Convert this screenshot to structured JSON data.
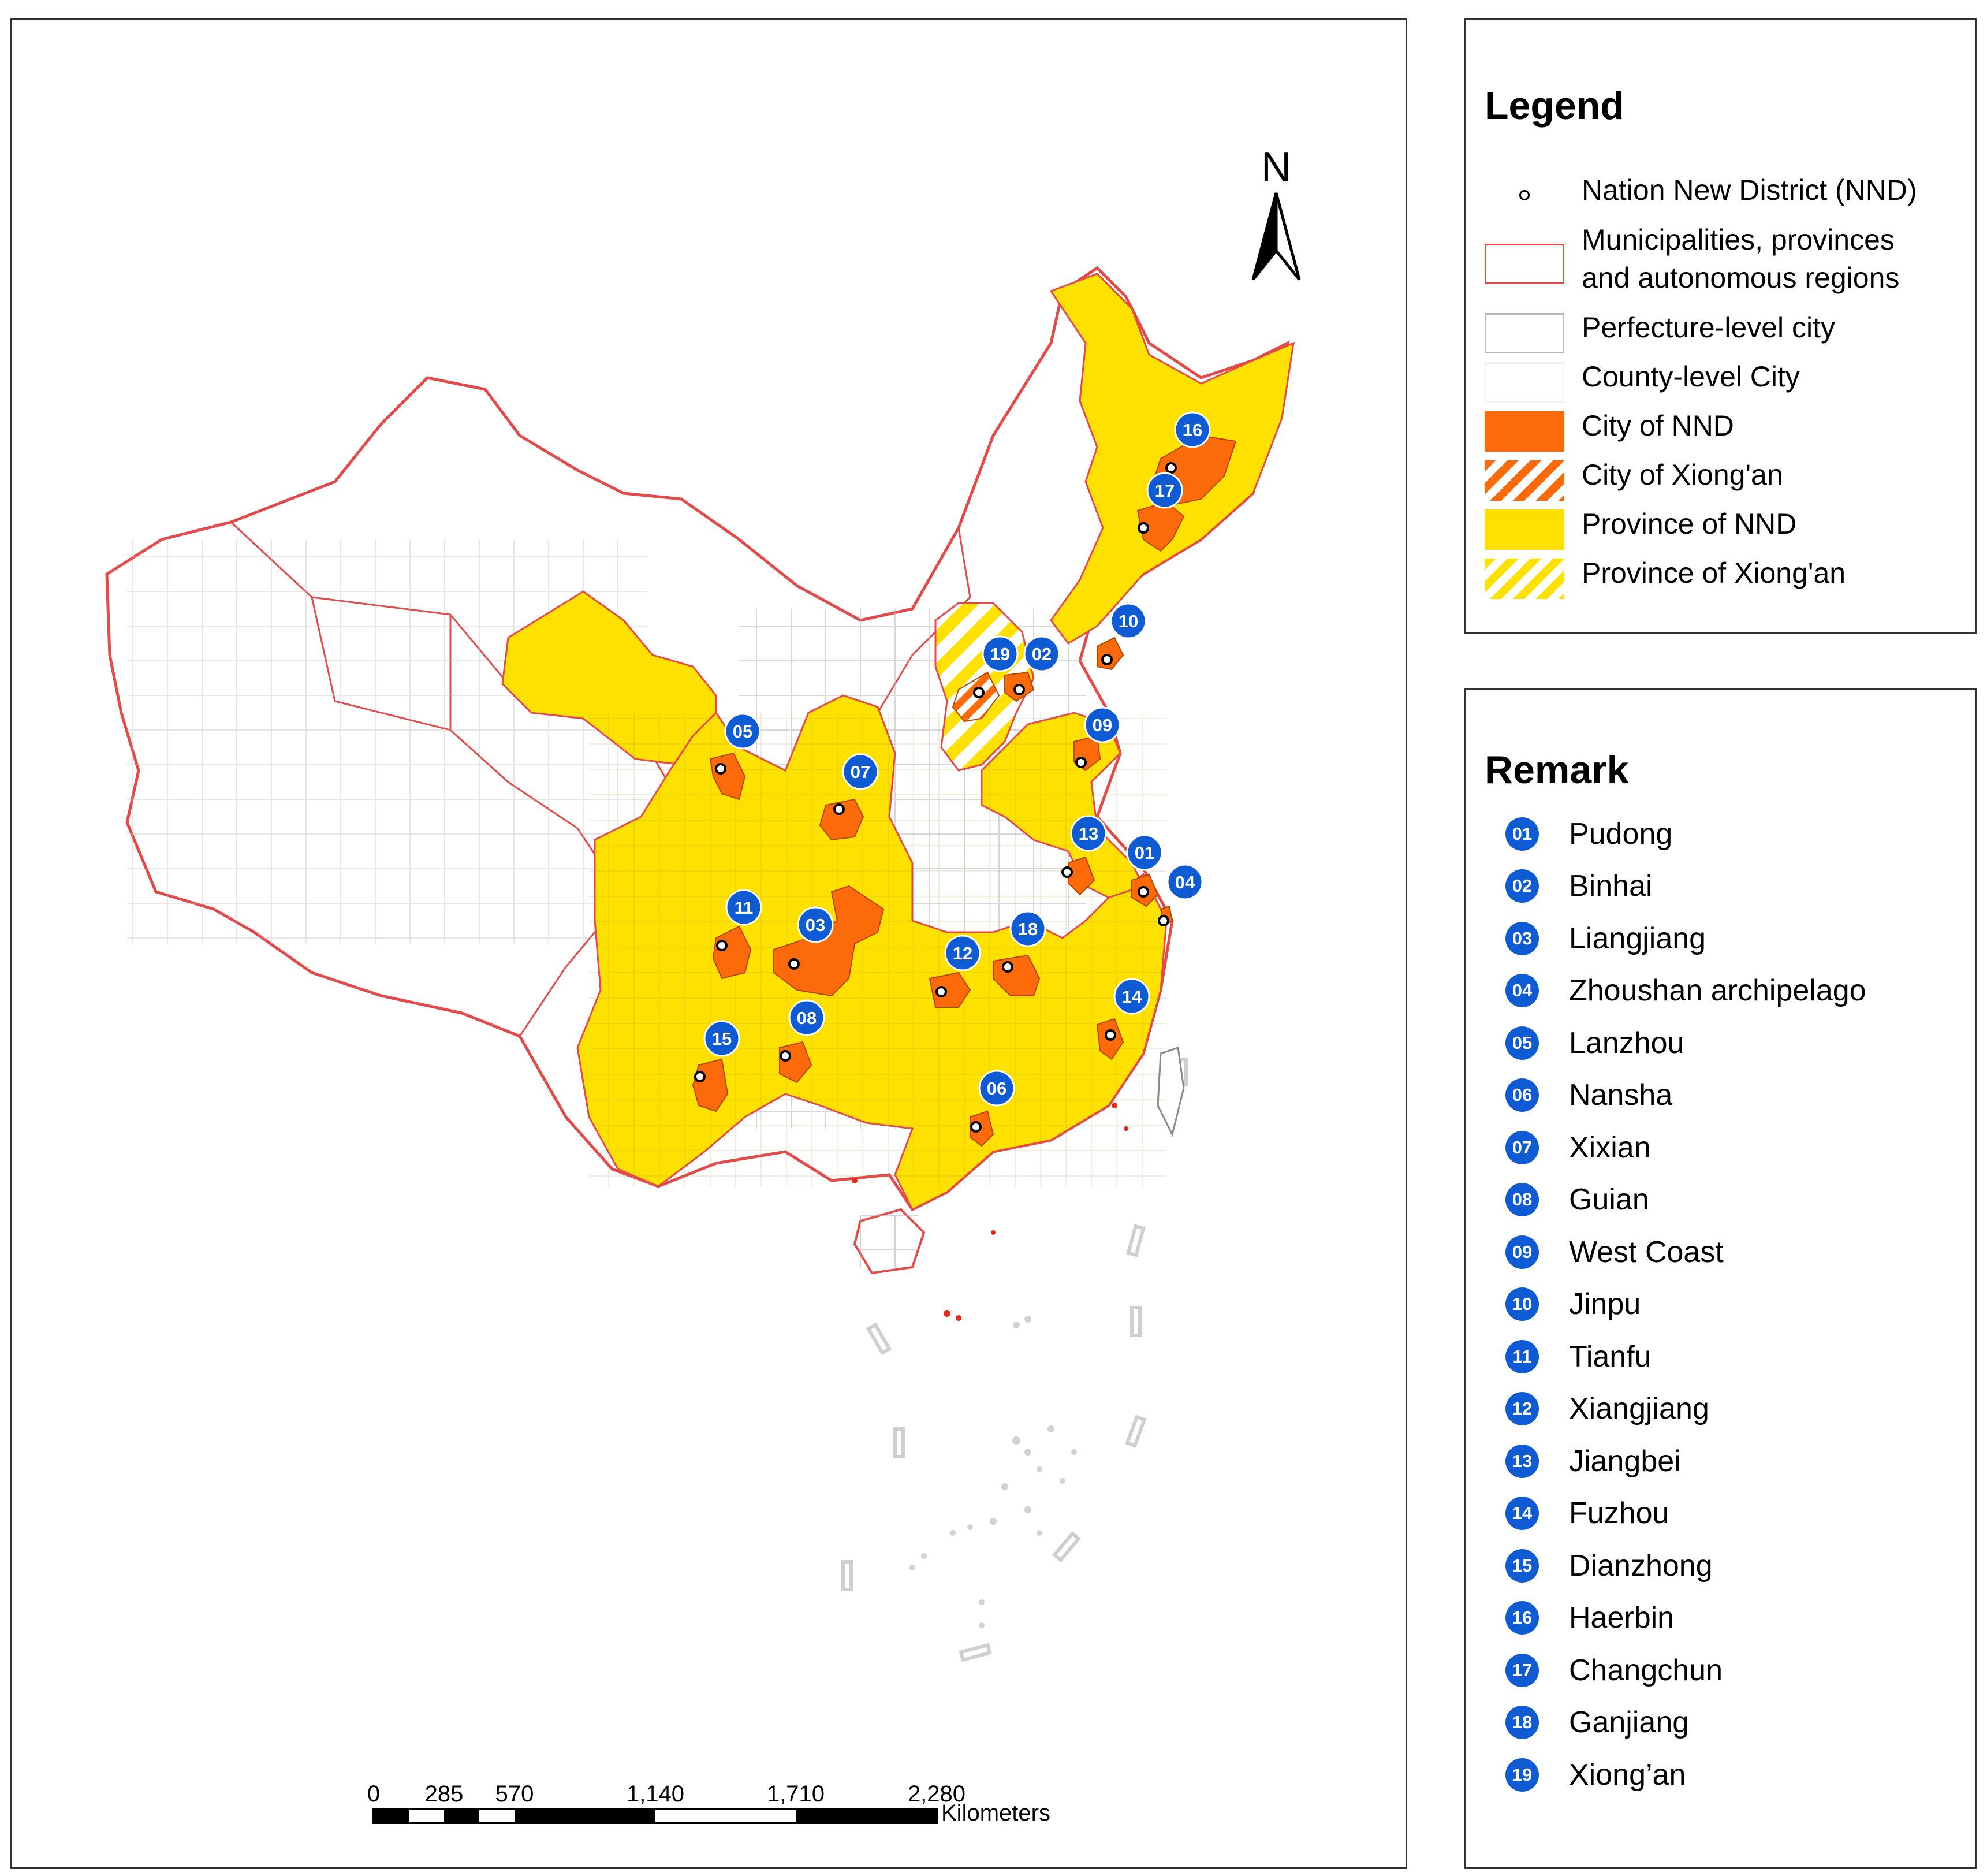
{
  "colors": {
    "nnd_city": "#fd6a09",
    "nnd_province": "#ffe100",
    "province_border": "#e44a4a",
    "city_border": "#9a9a9a",
    "marker_blue": "#0f5bd4"
  },
  "map": {
    "north_label": "N",
    "scale_labels": [
      "0",
      "285",
      "570",
      "1,140",
      "1,710",
      "2,280"
    ],
    "scale_unit": "Kilometers",
    "markers": [
      {
        "id": "01",
        "name": "Pudong",
        "type": "nnd"
      },
      {
        "id": "02",
        "name": "Binhai",
        "type": "nnd"
      },
      {
        "id": "03",
        "name": "Liangjiang",
        "type": "nnd"
      },
      {
        "id": "04",
        "name": "Zhoushan archipelago",
        "type": "nnd"
      },
      {
        "id": "05",
        "name": "Lanzhou",
        "type": "nnd"
      },
      {
        "id": "06",
        "name": "Nansha",
        "type": "nnd"
      },
      {
        "id": "07",
        "name": "Xixian",
        "type": "nnd"
      },
      {
        "id": "08",
        "name": "Guian",
        "type": "nnd"
      },
      {
        "id": "09",
        "name": "West Coast",
        "type": "nnd"
      },
      {
        "id": "10",
        "name": "Jinpu",
        "type": "nnd"
      },
      {
        "id": "11",
        "name": "Tianfu",
        "type": "nnd"
      },
      {
        "id": "12",
        "name": "Xiangjiang",
        "type": "nnd"
      },
      {
        "id": "13",
        "name": "Jiangbei",
        "type": "nnd"
      },
      {
        "id": "14",
        "name": "Fuzhou",
        "type": "nnd"
      },
      {
        "id": "15",
        "name": "Dianzhong",
        "type": "nnd"
      },
      {
        "id": "16",
        "name": "Haerbin",
        "type": "nnd"
      },
      {
        "id": "17",
        "name": "Changchun",
        "type": "nnd"
      },
      {
        "id": "18",
        "name": "Ganjiang",
        "type": "nnd"
      },
      {
        "id": "19",
        "name": "Xiong’an",
        "type": "xiongan"
      }
    ]
  },
  "legend": {
    "title": "Legend",
    "items": [
      {
        "key": "nnd-point",
        "label": "Nation New District (NND)"
      },
      {
        "key": "province-boundary",
        "label": "Municipalities, provinces\nand autonomous regions"
      },
      {
        "key": "prefecture-city",
        "label": "Perfecture-level city"
      },
      {
        "key": "county-city",
        "label": "County-level City"
      },
      {
        "key": "city-of-nnd",
        "label": "City of NND"
      },
      {
        "key": "city-of-xiongan",
        "label": "City of Xiong'an"
      },
      {
        "key": "province-of-nnd",
        "label": "Province of NND"
      },
      {
        "key": "province-of-xiongan",
        "label": "Province of Xiong'an"
      }
    ]
  },
  "remark": {
    "title": "Remark",
    "items": [
      {
        "id": "01",
        "name": "Pudong"
      },
      {
        "id": "02",
        "name": "Binhai"
      },
      {
        "id": "03",
        "name": "Liangjiang"
      },
      {
        "id": "04",
        "name": "Zhoushan archipelago"
      },
      {
        "id": "05",
        "name": "Lanzhou"
      },
      {
        "id": "06",
        "name": "Nansha"
      },
      {
        "id": "07",
        "name": "Xixian"
      },
      {
        "id": "08",
        "name": "Guian"
      },
      {
        "id": "09",
        "name": "West Coast"
      },
      {
        "id": "10",
        "name": "Jinpu"
      },
      {
        "id": "11",
        "name": "Tianfu"
      },
      {
        "id": "12",
        "name": "Xiangjiang"
      },
      {
        "id": "13",
        "name": "Jiangbei"
      },
      {
        "id": "14",
        "name": "Fuzhou"
      },
      {
        "id": "15",
        "name": "Dianzhong"
      },
      {
        "id": "16",
        "name": "Haerbin"
      },
      {
        "id": "17",
        "name": "Changchun"
      },
      {
        "id": "18",
        "name": "Ganjiang"
      },
      {
        "id": "19",
        "name": "Xiong’an"
      }
    ]
  }
}
